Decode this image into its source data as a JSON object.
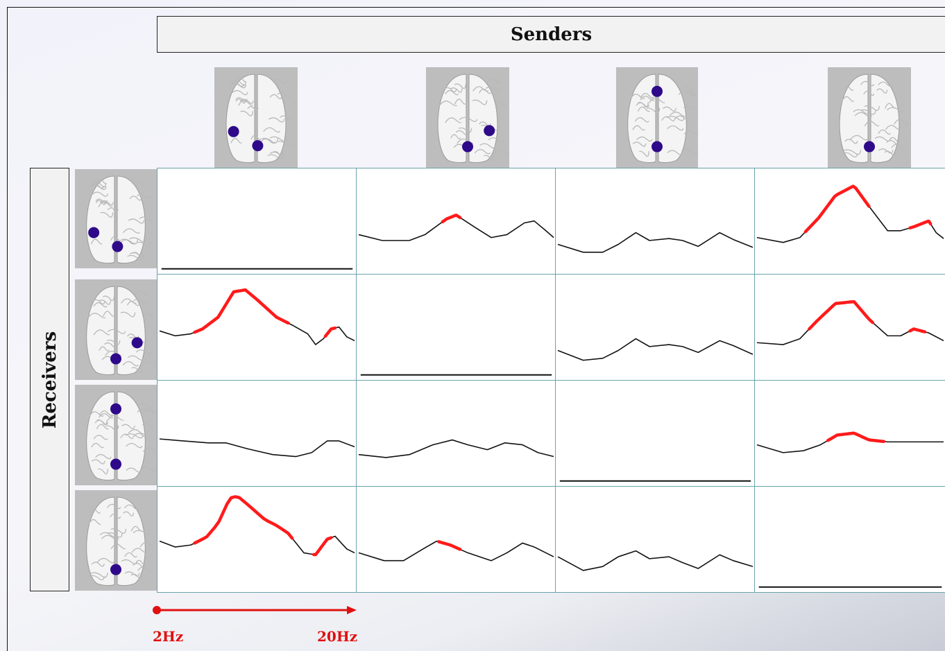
{
  "headers": {
    "senders": "Senders",
    "receivers": "Receivers"
  },
  "axis": {
    "start_label": "2Hz",
    "end_label": "20Hz",
    "color": "#e01010"
  },
  "colors": {
    "dot": "#2e0a8a",
    "significant": "#ff1a1a",
    "trace": "#111111",
    "grid_border": "#6aa3aa"
  },
  "regions": {
    "sender_icons": [
      "left-parietal-and-occipital",
      "right-parietal-and-occipital",
      "frontal-and-occipital",
      "occipital"
    ],
    "receiver_icons": [
      "left-parietal-and-occipital",
      "right-parietal-and-occipital",
      "frontal-and-occipital",
      "occipital"
    ]
  }
}
